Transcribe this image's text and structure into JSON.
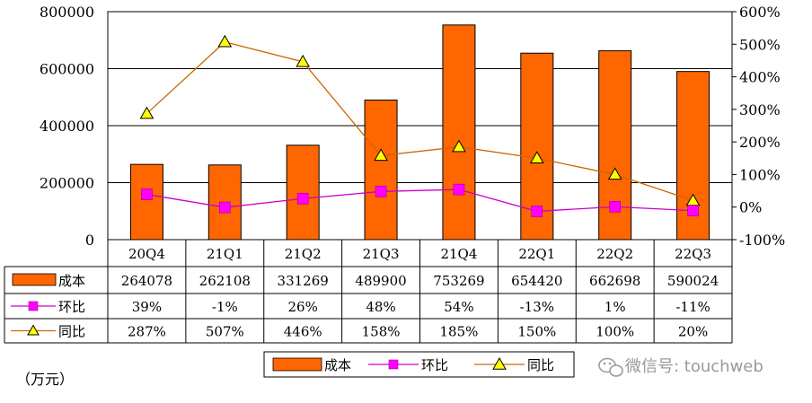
{
  "chart_data": {
    "type": "bar",
    "categories": [
      "20Q4",
      "21Q1",
      "21Q2",
      "21Q3",
      "21Q4",
      "22Q1",
      "22Q2",
      "22Q3"
    ],
    "series": [
      {
        "name": "成本",
        "type": "bar",
        "axis": "left",
        "color": "#ff6600",
        "values": [
          264078,
          262108,
          331269,
          489900,
          753269,
          654420,
          662698,
          590024
        ],
        "labels": [
          "264078",
          "262108",
          "331269",
          "489900",
          "753269",
          "654420",
          "662698",
          "590024"
        ]
      },
      {
        "name": "环比",
        "type": "line",
        "axis": "right",
        "color": "#cc00cc",
        "marker_color": "#ff00ff",
        "marker": "square",
        "values": [
          39,
          -1,
          26,
          48,
          54,
          -13,
          1,
          -11
        ],
        "labels": [
          "39%",
          "-1%",
          "26%",
          "48%",
          "54%",
          "-13%",
          "1%",
          "-11%"
        ]
      },
      {
        "name": "同比",
        "type": "line",
        "axis": "right",
        "color": "#cc6600",
        "marker_color": "#ffff00",
        "marker": "triangle",
        "values": [
          287,
          507,
          446,
          158,
          185,
          150,
          100,
          20
        ],
        "labels": [
          "287%",
          "507%",
          "446%",
          "158%",
          "185%",
          "150%",
          "100%",
          "20%"
        ]
      }
    ],
    "y_left": {
      "ylim": [
        0,
        800000
      ],
      "ticks": [
        0,
        200000,
        400000,
        600000,
        800000
      ],
      "tick_labels": [
        "0",
        "200000",
        "400000",
        "600000",
        "800000"
      ]
    },
    "y_right": {
      "ylim": [
        -100,
        600
      ],
      "ticks": [
        -100,
        0,
        100,
        200,
        300,
        400,
        500,
        600
      ],
      "tick_labels": [
        "-100%",
        "0%",
        "100%",
        "200%",
        "300%",
        "400%",
        "500%",
        "600%"
      ]
    },
    "grid": true,
    "legend": {
      "position": "bottom-center",
      "items": [
        "成本",
        "环比",
        "同比"
      ]
    },
    "unit_label": "（万元）",
    "title": ""
  },
  "watermark": {
    "text": "微信号: touchweb"
  }
}
